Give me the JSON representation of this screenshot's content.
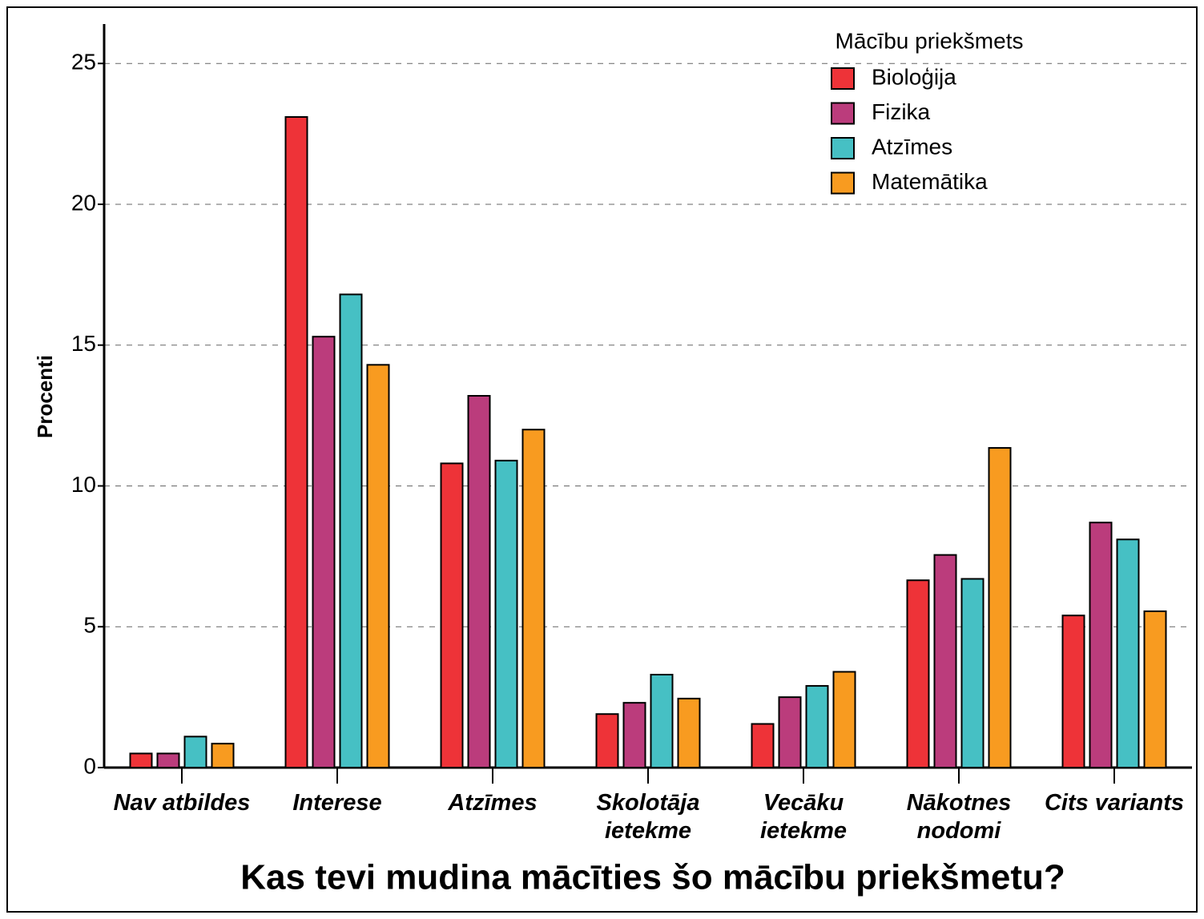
{
  "chart_data": {
    "type": "bar",
    "title": "Kas tevi mudina mācīties šo mācību priekšmetu?",
    "y_label": "Procenti",
    "legend_title": "Mācību priekšmets",
    "legend": "upper right",
    "grid": true,
    "categories": [
      "Nav atbildes",
      "Interese",
      "Atzīmes",
      "Skolotāja ietekme",
      "Vecāku ietekme",
      "Nākotnes nodomi",
      "Cits variants"
    ],
    "series": [
      {
        "name": "Bioloģija",
        "color": "#ee3338",
        "values": [
          0.5,
          23.1,
          10.8,
          1.9,
          1.55,
          6.65,
          5.4
        ]
      },
      {
        "name": "Fizika",
        "color": "#bb3c7c",
        "values": [
          0.5,
          15.3,
          13.2,
          2.3,
          2.5,
          7.55,
          8.7
        ]
      },
      {
        "name": "Atzīmes",
        "color": "#46c0c4",
        "values": [
          1.1,
          16.8,
          10.9,
          3.3,
          2.9,
          6.7,
          8.1
        ]
      },
      {
        "name": "Matemātika",
        "color": "#f89b20",
        "values": [
          0.85,
          14.3,
          12.0,
          2.45,
          3.4,
          11.35,
          5.55
        ]
      }
    ],
    "ylim": [
      0,
      26.4
    ],
    "yticks": [
      0,
      5,
      10,
      15,
      20,
      25
    ]
  }
}
